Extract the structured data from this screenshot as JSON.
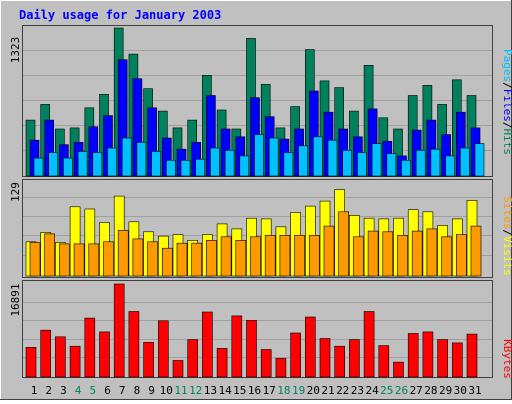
{
  "chart_data": [
    {
      "type": "bar",
      "title": "Daily usage for January 2003",
      "ymax_label": "1323",
      "ylim": [
        0,
        1323
      ],
      "categories": [
        "1",
        "2",
        "3",
        "4",
        "5",
        "6",
        "7",
        "8",
        "9",
        "10",
        "11",
        "12",
        "13",
        "14",
        "15",
        "16",
        "17",
        "18",
        "19",
        "20",
        "21",
        "22",
        "23",
        "24",
        "25",
        "26",
        "27",
        "28",
        "29",
        "30",
        "31"
      ],
      "weekend_days": [
        "4",
        "5",
        "11",
        "12",
        "18",
        "19",
        "25",
        "26"
      ],
      "series": [
        {
          "name": "Hits",
          "color": "#00805c",
          "values": [
            500,
            640,
            420,
            430,
            610,
            730,
            1323,
            1090,
            780,
            580,
            430,
            500,
            900,
            590,
            420,
            1230,
            820,
            430,
            620,
            1130,
            850,
            790,
            580,
            990,
            520,
            420,
            720,
            810,
            640,
            860,
            720
          ]
        },
        {
          "name": "Files",
          "color": "#0000ff",
          "values": [
            320,
            500,
            280,
            300,
            440,
            540,
            1040,
            870,
            610,
            340,
            240,
            300,
            720,
            420,
            350,
            700,
            530,
            330,
            420,
            760,
            570,
            420,
            350,
            600,
            310,
            180,
            410,
            500,
            370,
            570,
            430
          ]
        },
        {
          "name": "Pages",
          "color": "#00c0ff",
          "values": [
            160,
            210,
            160,
            220,
            210,
            250,
            340,
            300,
            220,
            140,
            140,
            150,
            250,
            230,
            180,
            370,
            340,
            210,
            270,
            350,
            320,
            230,
            210,
            290,
            200,
            140,
            230,
            240,
            180,
            250,
            290
          ]
        }
      ],
      "legend_right": [
        "Pages",
        "/",
        "Files",
        "/",
        "Hits"
      ]
    },
    {
      "type": "bar",
      "ymax_label": "129",
      "ylim": [
        0,
        129
      ],
      "series": [
        {
          "name": "Visits",
          "color": "#ffff00",
          "values": [
            48,
            61,
            47,
            97,
            94,
            75,
            112,
            76,
            62,
            56,
            58,
            50,
            58,
            73,
            66,
            81,
            80,
            69,
            89,
            98,
            105,
            121,
            85,
            81,
            80,
            81,
            93,
            90,
            71,
            80,
            106
          ]
        },
        {
          "name": "Sites",
          "color": "#ff9900",
          "values": [
            47,
            59,
            45,
            45,
            45,
            48,
            64,
            52,
            48,
            39,
            46,
            46,
            50,
            55,
            50,
            55,
            57,
            57,
            57,
            57,
            70,
            90,
            55,
            63,
            62,
            57,
            63,
            66,
            55,
            58,
            70
          ]
        }
      ],
      "legend_right": [
        "Sites",
        "/",
        "Visits"
      ]
    },
    {
      "type": "bar",
      "ymax_label": "16891",
      "ylim": [
        0,
        16891
      ],
      "series": [
        {
          "name": "KBytes",
          "color": "#ff0000",
          "values": [
            5400,
            8500,
            7300,
            5600,
            10700,
            8200,
            16891,
            11900,
            6300,
            10200,
            3000,
            6800,
            11800,
            5200,
            11100,
            10300,
            5000,
            3400,
            8000,
            10900,
            7000,
            5600,
            6800,
            11900,
            5700,
            2700,
            7900,
            8200,
            6800,
            6200,
            7800
          ]
        }
      ],
      "legend_right": [
        "KBytes"
      ]
    }
  ]
}
